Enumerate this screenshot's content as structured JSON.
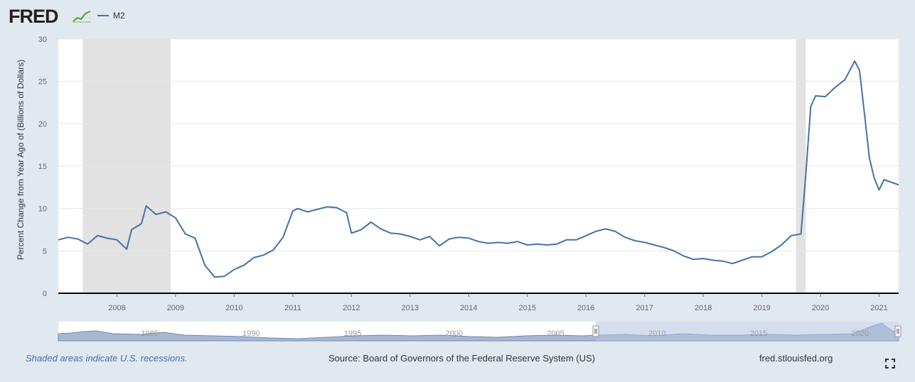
{
  "header": {
    "logo": "FRED",
    "legend_label": "M2"
  },
  "footer": {
    "note": "Shaded areas indicate U.S. recessions.",
    "source": "Source: Board of Governors of the Federal Reserve System (US)",
    "site": "fred.stlouisfed.org"
  },
  "icons": {
    "logo_mark": "chart-line-icon",
    "fullscreen": "fullscreen-icon"
  },
  "colors": {
    "line": "#4572a7",
    "recession": "#e2e2e2",
    "navigator_fill": "#c8d4e6"
  },
  "navigator": {
    "tick_labels": [
      "1985",
      "1990",
      "1995",
      "2000",
      "2005",
      "2010",
      "2015",
      "2020"
    ],
    "selected_range": [
      "2007-07",
      "2021-11"
    ]
  },
  "chart_data": {
    "type": "line",
    "title": "",
    "xlabel": "",
    "ylabel": "Percent Change from Year Ago of (Billions of Dollars)",
    "x_tick_labels": [
      "2008",
      "2009",
      "2010",
      "2011",
      "2012",
      "2013",
      "2014",
      "2015",
      "2016",
      "2017",
      "2018",
      "2019",
      "2020",
      "2021"
    ],
    "y_ticks": [
      0,
      5,
      10,
      15,
      20,
      25,
      30
    ],
    "ylim": [
      0,
      30
    ],
    "xlim": [
      "2007-07",
      "2021-11"
    ],
    "grid": true,
    "recessions": [
      [
        "2007-12",
        "2009-06"
      ],
      [
        "2020-02",
        "2020-04"
      ]
    ],
    "series": [
      {
        "name": "M2",
        "x": [
          "2007-07",
          "2007-09",
          "2007-11",
          "2008-01",
          "2008-03",
          "2008-05",
          "2008-07",
          "2008-09",
          "2008-10",
          "2008-12",
          "2009-01",
          "2009-03",
          "2009-05",
          "2009-07",
          "2009-09",
          "2009-11",
          "2010-01",
          "2010-03",
          "2010-05",
          "2010-07",
          "2010-09",
          "2010-11",
          "2011-01",
          "2011-03",
          "2011-05",
          "2011-07",
          "2011-08",
          "2011-10",
          "2011-12",
          "2012-02",
          "2012-04",
          "2012-06",
          "2012-07",
          "2012-09",
          "2012-11",
          "2013-01",
          "2013-03",
          "2013-05",
          "2013-07",
          "2013-09",
          "2013-11",
          "2014-01",
          "2014-03",
          "2014-05",
          "2014-07",
          "2014-09",
          "2014-11",
          "2015-01",
          "2015-03",
          "2015-05",
          "2015-07",
          "2015-09",
          "2015-11",
          "2016-01",
          "2016-03",
          "2016-05",
          "2016-07",
          "2016-09",
          "2016-11",
          "2017-01",
          "2017-03",
          "2017-05",
          "2017-07",
          "2017-09",
          "2017-11",
          "2018-01",
          "2018-03",
          "2018-05",
          "2018-07",
          "2018-09",
          "2018-11",
          "2019-01",
          "2019-03",
          "2019-05",
          "2019-07",
          "2019-09",
          "2019-11",
          "2020-01",
          "2020-02",
          "2020-03",
          "2020-04",
          "2020-05",
          "2020-06",
          "2020-08",
          "2020-10",
          "2020-12",
          "2021-02",
          "2021-03",
          "2021-04",
          "2021-05",
          "2021-06",
          "2021-07",
          "2021-08",
          "2021-09",
          "2021-11"
        ],
        "values": [
          6.3,
          6.6,
          6.4,
          5.8,
          6.8,
          6.5,
          6.3,
          5.2,
          7.5,
          8.2,
          10.3,
          9.3,
          9.6,
          8.9,
          7.0,
          6.5,
          3.3,
          1.9,
          2.0,
          2.8,
          3.3,
          4.2,
          4.5,
          5.1,
          6.6,
          9.7,
          10.0,
          9.6,
          9.9,
          10.2,
          10.1,
          9.5,
          7.1,
          7.5,
          8.4,
          7.6,
          7.1,
          7.0,
          6.7,
          6.3,
          6.7,
          5.6,
          6.4,
          6.6,
          6.5,
          6.1,
          5.9,
          6.0,
          5.9,
          6.1,
          5.7,
          5.8,
          5.7,
          5.8,
          6.3,
          6.3,
          6.8,
          7.3,
          7.6,
          7.3,
          6.6,
          6.2,
          6.0,
          5.7,
          5.4,
          5.0,
          4.4,
          4.0,
          4.1,
          3.9,
          3.8,
          3.5,
          3.9,
          4.3,
          4.3,
          4.9,
          5.7,
          6.8,
          6.9,
          7.0,
          14.0,
          22.0,
          23.3,
          23.2,
          24.3,
          25.2,
          27.4,
          26.3,
          21.2,
          16.0,
          13.6,
          12.2,
          13.4,
          13.2,
          12.8
        ]
      }
    ]
  }
}
